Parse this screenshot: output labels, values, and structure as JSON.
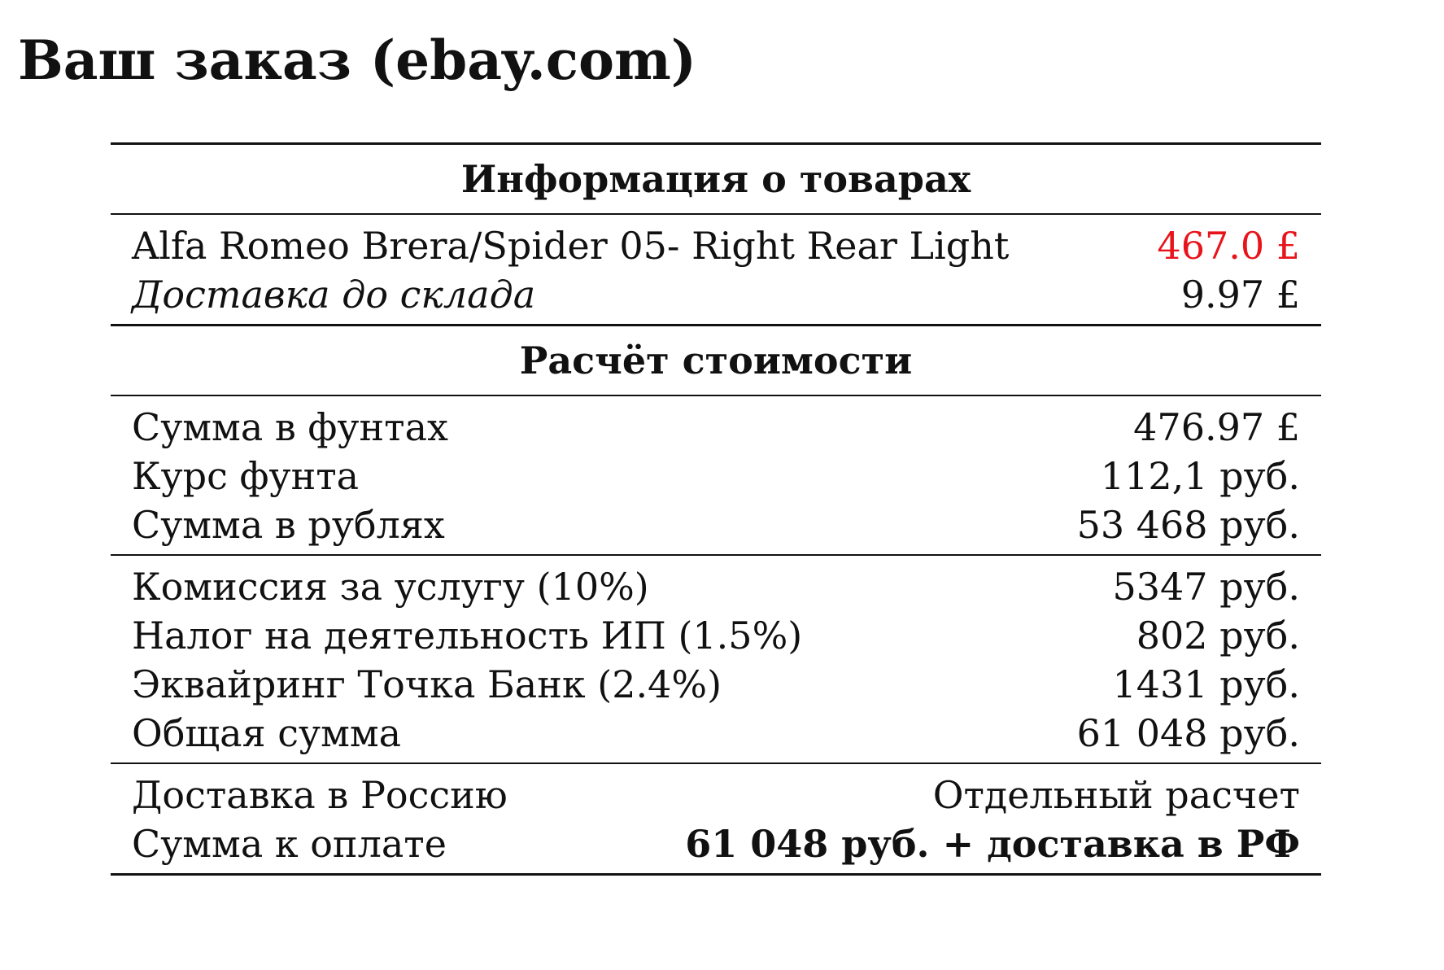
{
  "title": "Ваш заказ (ebay.com)",
  "accent_color": "#e8141b",
  "sections": {
    "products": {
      "heading": "Информация о товарах",
      "item": {
        "label": "Alfa Romeo Brera/Spider 05- Right Rear Light",
        "value": "467.0 £"
      },
      "shipping_to_warehouse": {
        "label": "Доставка до склада",
        "value": "9.97 £"
      }
    },
    "calculation": {
      "heading": "Расчёт стоимости",
      "sum_gbp": {
        "label": "Сумма в фунтах",
        "value": "476.97 £"
      },
      "gbp_rate": {
        "label": "Курс фунта",
        "value": "112,1 руб."
      },
      "sum_rub": {
        "label": "Сумма в рублях",
        "value": "53 468 руб."
      }
    },
    "fees": {
      "service_fee": {
        "label": "Комиссия за услугу (10%)",
        "value": "5347 руб."
      },
      "ip_tax": {
        "label": "Налог на деятельность ИП (1.5%)",
        "value": "802 руб."
      },
      "acquiring": {
        "label": "Эквайринг Точка Банк (2.4%)",
        "value": "1431 руб."
      },
      "total": {
        "label": "Общая сумма",
        "value": "61 048 руб."
      }
    },
    "payment": {
      "delivery_russia": {
        "label": "Доставка в Россию",
        "value": "Отдельный расчет"
      },
      "amount_due": {
        "label": "Сумма к оплате",
        "value": "61 048 руб. + доставка в РФ"
      }
    }
  }
}
